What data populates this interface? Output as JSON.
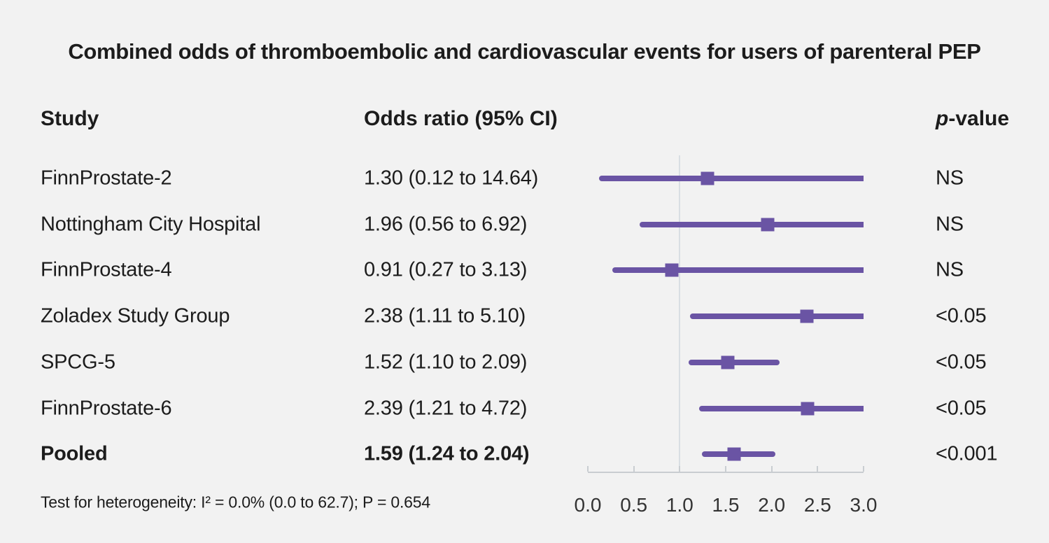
{
  "title": "Combined odds of thromboembolic and cardiovascular events for users of parenteral PEP",
  "columns": {
    "study": "Study",
    "or_ci": "Odds ratio (95% CI)",
    "p_italic": "p",
    "p_rest": "-value"
  },
  "footer": "Test for heterogeneity: I² = 0.0% (0.0 to 62.7); P = 0.654",
  "colors": {
    "background": "#f2f2f2",
    "marker": "#6a54a4",
    "gridline": "#d9dee3",
    "axis": "#c9cdd1",
    "text": "#1c1c1c"
  },
  "chart_data": {
    "type": "forest",
    "title": "Combined odds of thromboembolic and cardiovascular events for users of parenteral PEP",
    "xlabel": "Odds ratio",
    "xlim": [
      0.0,
      3.0
    ],
    "ticks": [
      "0.0",
      "0.5",
      "1.0",
      "1.5",
      "2.0",
      "2.5",
      "3.0"
    ],
    "reference_line": 1.0,
    "rows": [
      {
        "study": "FinnProstate-2",
        "or_ci": "1.30 (0.12 to 14.64)",
        "est": 1.3,
        "lo": 0.12,
        "hi": 14.64,
        "p": "NS",
        "bold": false
      },
      {
        "study": "Nottingham City Hospital",
        "or_ci": "1.96 (0.56 to 6.92)",
        "est": 1.96,
        "lo": 0.56,
        "hi": 6.92,
        "p": "NS",
        "bold": false
      },
      {
        "study": "FinnProstate-4",
        "or_ci": "0.91 (0.27 to 3.13)",
        "est": 0.91,
        "lo": 0.27,
        "hi": 3.13,
        "p": "NS",
        "bold": false
      },
      {
        "study": "Zoladex Study Group",
        "or_ci": "2.38 (1.11 to 5.10)",
        "est": 2.38,
        "lo": 1.11,
        "hi": 5.1,
        "p": "<0.05",
        "bold": false
      },
      {
        "study": "SPCG-5",
        "or_ci": "1.52 (1.10 to 2.09)",
        "est": 1.52,
        "lo": 1.1,
        "hi": 2.09,
        "p": "<0.05",
        "bold": false
      },
      {
        "study": "FinnProstate-6",
        "or_ci": "2.39 (1.21 to 4.72)",
        "est": 2.39,
        "lo": 1.21,
        "hi": 4.72,
        "p": "<0.05",
        "bold": false
      },
      {
        "study": "Pooled",
        "or_ci": "1.59 (1.24 to 2.04)",
        "est": 1.59,
        "lo": 1.24,
        "hi": 2.04,
        "p": "<0.001",
        "bold": true
      }
    ],
    "heterogeneity": "Test for heterogeneity: I² = 0.0% (0.0 to 62.7); P = 0.654"
  }
}
